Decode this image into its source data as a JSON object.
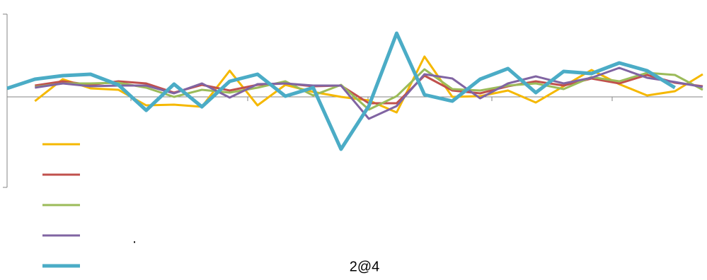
{
  "chart_data": {
    "type": "line",
    "x": [
      0,
      1,
      2,
      3,
      4,
      5,
      6,
      7,
      8,
      9,
      10,
      11,
      12,
      13,
      14,
      15,
      16,
      17,
      18,
      19,
      20,
      21,
      22,
      23,
      24,
      25
    ],
    "xlim": [
      0,
      25
    ],
    "ylim": [
      -128,
      117
    ],
    "annotations": [
      ".",
      "2@4"
    ],
    "series": [
      {
        "color": "#f5b800",
        "line_width": 3,
        "values": [
          null,
          -6,
          25,
          12,
          10,
          -12,
          -11,
          -14,
          37,
          -12,
          17,
          7,
          0,
          -5,
          -22,
          57,
          0,
          1,
          9,
          -8,
          15,
          38,
          18,
          2,
          8,
          32
        ]
      },
      {
        "color": "#c0504d",
        "line_width": 3,
        "values": [
          null,
          16,
          22,
          17,
          22,
          19,
          6,
          17,
          9,
          17,
          19,
          15,
          16,
          -9,
          -9,
          30,
          9,
          5,
          15,
          22,
          16,
          26,
          19,
          31,
          20,
          15
        ]
      },
      {
        "color": "#9bbb59",
        "line_width": 3,
        "values": [
          null,
          14,
          19,
          19,
          20,
          13,
          0,
          10,
          6,
          13,
          22,
          2,
          17,
          -18,
          1,
          39,
          11,
          9,
          16,
          19,
          11,
          28,
          22,
          34,
          31,
          10
        ]
      },
      {
        "color": "#8064a2",
        "line_width": 3,
        "values": [
          null,
          13,
          19,
          15,
          16,
          16,
          5,
          19,
          -1,
          18,
          19,
          16,
          16,
          -31,
          -13,
          32,
          26,
          -2,
          19,
          29,
          19,
          27,
          41,
          27,
          21,
          14
        ]
      },
      {
        "color": "#4bacc6",
        "line_width": 5,
        "values": [
          12,
          25,
          30,
          32,
          17,
          -19,
          18,
          -14,
          22,
          32,
          1,
          13,
          -74,
          -13,
          90,
          3,
          -6,
          25,
          40,
          6,
          36,
          33,
          48,
          37,
          13,
          null
        ]
      }
    ]
  }
}
